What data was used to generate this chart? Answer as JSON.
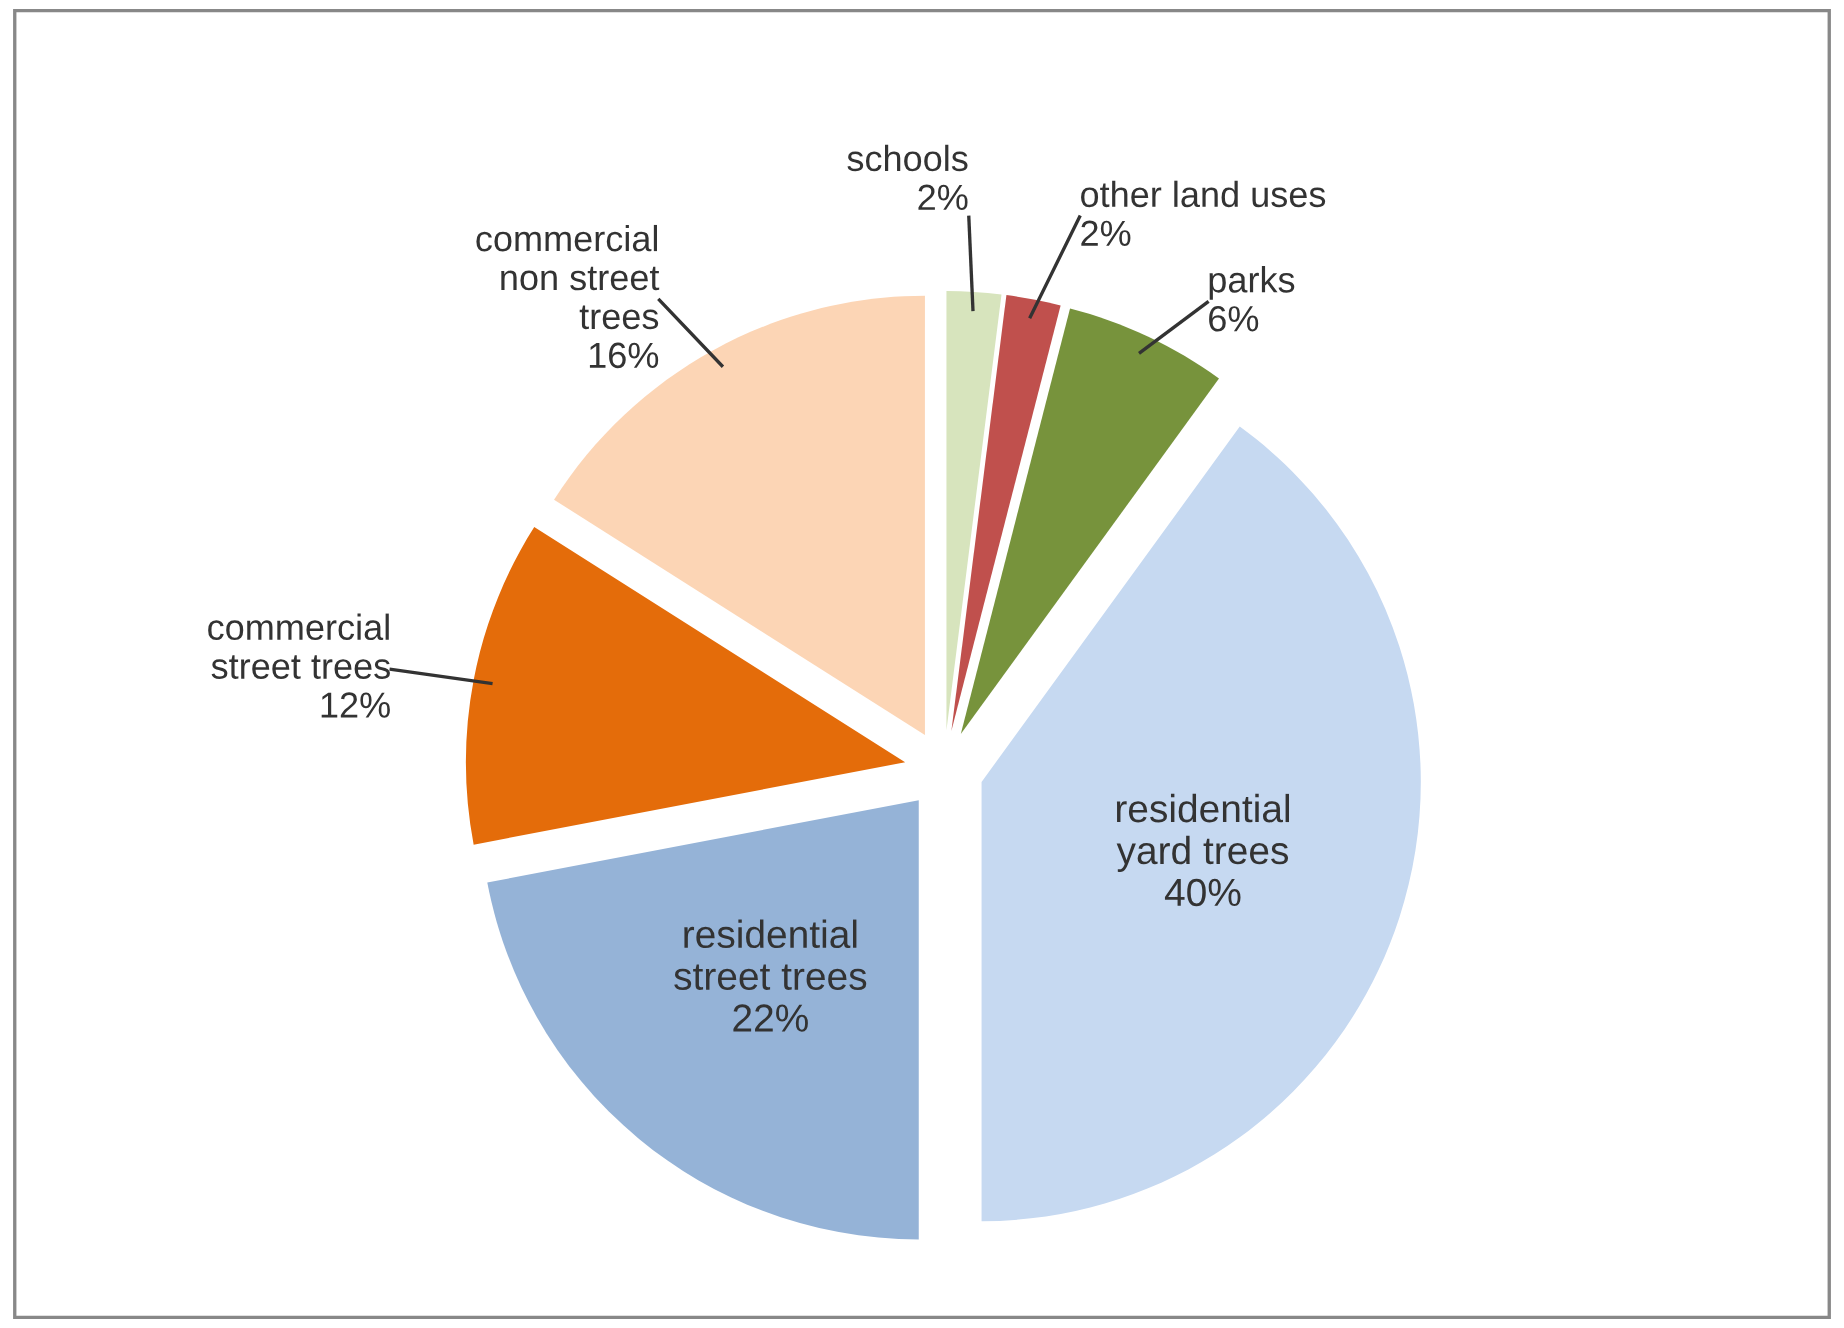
{
  "chart_data": {
    "type": "pie",
    "categories": [
      "schools",
      "other land uses",
      "parks",
      "residential\nyard trees",
      "residential\nstreet trees",
      "commercial\nstreet trees",
      "commercial\nnon street\ntrees"
    ],
    "values": [
      2,
      2,
      6,
      40,
      22,
      12,
      16
    ],
    "colors": [
      "#d7e4bd",
      "#c0504d",
      "#77933c",
      "#c6d9f1",
      "#95b3d7",
      "#e46c0a",
      "#fcd5b5"
    ],
    "value_labels": [
      "2%",
      "2%",
      "6%",
      "40%",
      "22%",
      "12%",
      "16%"
    ]
  }
}
